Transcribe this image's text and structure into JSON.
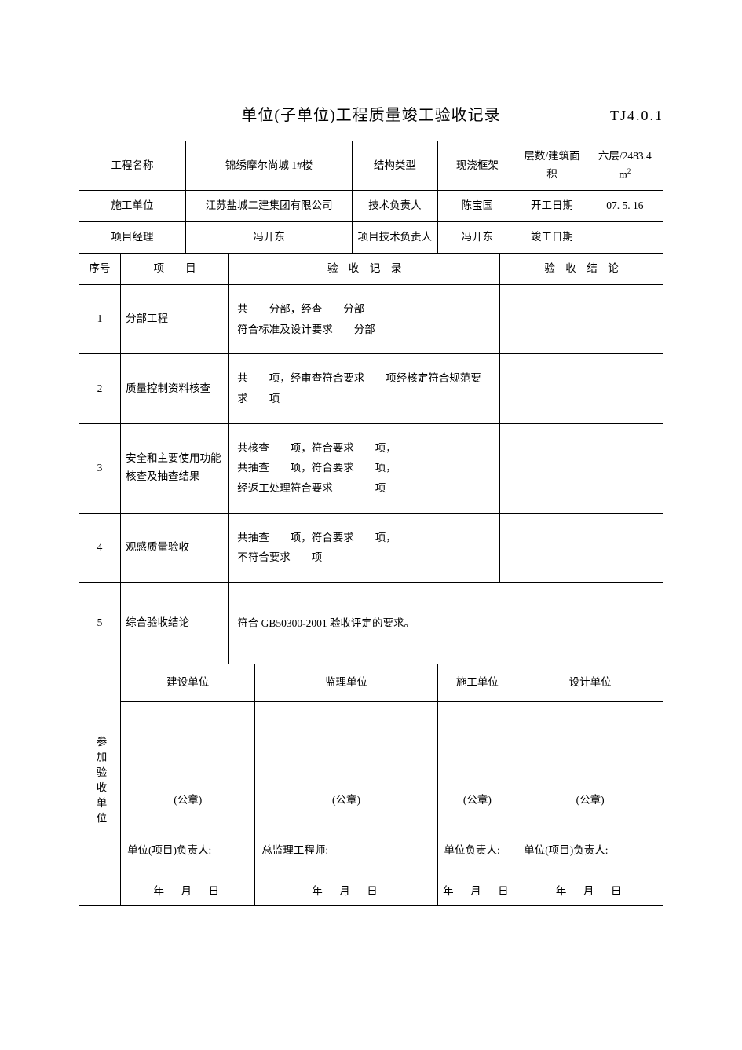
{
  "title": "单位(子单位)工程质量竣工验收记录",
  "doc_code": "TJ4.0.1",
  "header": {
    "row1": {
      "l1": "工程名称",
      "v1": "锦绣摩尔尚城 1#楼",
      "l2": "结构类型",
      "v2": "现浇框架",
      "l3": "层数/建筑面积",
      "v3_prefix": "六层/2483.4 ",
      "v3_unit": "m",
      "v3_sup": "2"
    },
    "row2": {
      "l1": "施工单位",
      "v1": "江苏盐城二建集团有限公司",
      "l2": "技术负责人",
      "v2": "陈宝国",
      "l3": "开工日期",
      "v3": "07. 5. 16"
    },
    "row3": {
      "l1": "项目经理",
      "v1": "冯开东",
      "l2": "项目技术负责人",
      "v2": "冯开东",
      "l3": "竣工日期",
      "v3": ""
    }
  },
  "cols": {
    "seq": "序号",
    "item": "项　　目",
    "record": "验　收　记　录",
    "conclusion": "验　收　结　论"
  },
  "rows": [
    {
      "n": "1",
      "item": "分部工程",
      "record": "共　　分部，经查　　分部\n符合标准及设计要求　　分部"
    },
    {
      "n": "2",
      "item": "质量控制资料核查",
      "record": "共　　项，经审查符合要求　　项经核定符合规范要求　　项"
    },
    {
      "n": "3",
      "item": "安全和主要使用功能核查及抽查结果",
      "record": "共核查　　项，符合要求　　项，\n共抽查　　项，符合要求　　项，\n经返工处理符合要求　　　　项"
    },
    {
      "n": "4",
      "item": "观感质量验收",
      "record": "共抽查　　项，符合要求　　项，\n不符合要求　　项"
    },
    {
      "n": "5",
      "item": "综合验收结论",
      "record": "符合 GB50300-2001 验收评定的要求。"
    }
  ],
  "participants": {
    "label": "参加验收单位",
    "seal": "(公章)",
    "dateline": "年　月　日",
    "cols": [
      {
        "head": "建设单位",
        "signer": "单位(项目)负责人:"
      },
      {
        "head": "监理单位",
        "signer": "总监理工程师:"
      },
      {
        "head": "施工单位",
        "signer": "单位负责人:"
      },
      {
        "head": "设计单位",
        "signer": "单位(项目)负责人:"
      }
    ]
  }
}
